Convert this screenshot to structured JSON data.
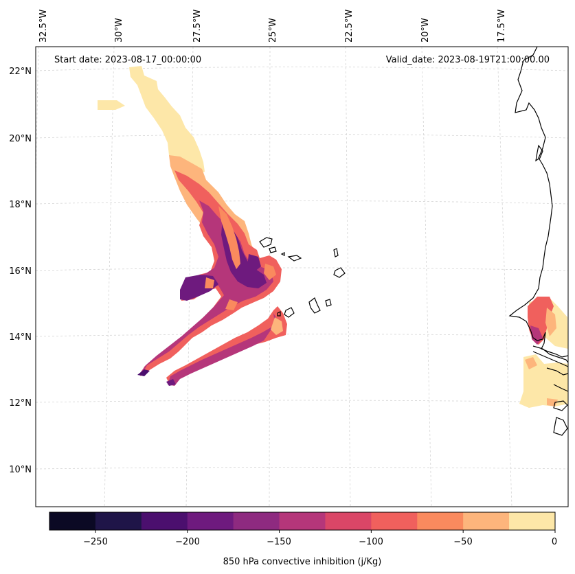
{
  "map": {
    "annotations": {
      "start": "Start date: 2023-08-17_00:00:00",
      "valid": "Valid_date: 2023-08-19T21:00:00.00"
    },
    "lon_labels": [
      "32.5°W",
      "30°W",
      "27.5°W",
      "25°W",
      "22.5°W",
      "20°W",
      "17.5°W"
    ],
    "lat_labels": [
      "22°N",
      "20°N",
      "18°N",
      "16°N",
      "14°N",
      "12°N",
      "10°N"
    ],
    "extent": {
      "lon": [
        -32.5,
        -15.8
      ],
      "lat": [
        8.9,
        22.8
      ]
    },
    "gridlines": true,
    "coastline_color": "#000000"
  },
  "colorbar": {
    "label": "850 hPa convective inhibition (j/Kg)",
    "ticks": [
      "−250",
      "−200",
      "−150",
      "−100",
      "−50",
      "0"
    ],
    "levels": [
      -275,
      -250,
      -225,
      -200,
      -175,
      -150,
      -125,
      -100,
      -75,
      -50,
      -25,
      0
    ],
    "colors": [
      "#0b0924",
      "#1f1548",
      "#4b0f6e",
      "#6e1a7e",
      "#8e2a80",
      "#b5367a",
      "#da4667",
      "#f0605d",
      "#fa8a5e",
      "#fdb57c",
      "#fde7a8"
    ]
  }
}
